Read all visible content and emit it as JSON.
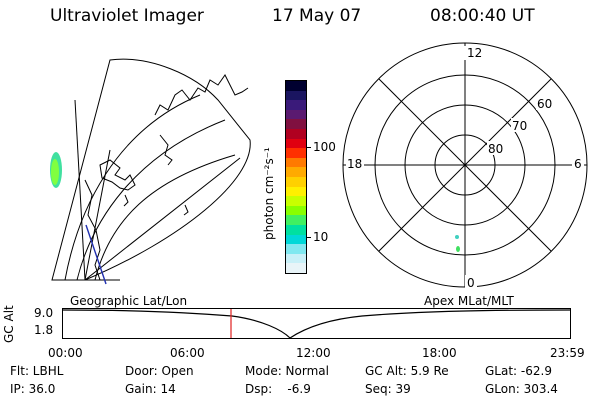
{
  "header": {
    "instrument": "Ultraviolet Imager",
    "date": "17 May 07",
    "time": "08:00:40 UT"
  },
  "colorbar": {
    "label": "photon cm⁻²s⁻¹",
    "ticks": [
      "100",
      "10"
    ],
    "colors": [
      "#000030",
      "#1a1560",
      "#3a1a7a",
      "#5a1a70",
      "#801040",
      "#b00020",
      "#e00010",
      "#ff3000",
      "#ff7a00",
      "#ffaa00",
      "#ffd000",
      "#fff000",
      "#c8ff00",
      "#88ff00",
      "#40f060",
      "#00e0a0",
      "#00d8d8",
      "#80e8f0",
      "#c8f0f8",
      "#e8f4f8"
    ]
  },
  "polar": {
    "labels_mlt": [
      "12",
      "18",
      "6",
      "0"
    ],
    "labels_lat": [
      "60",
      "70",
      "80"
    ]
  },
  "timeline": {
    "left_label": "Geographic Lat/Lon",
    "right_label": "Apex  MLat/MLT",
    "ylabel": "GC Alt",
    "yticks": [
      "9.0",
      "1.8"
    ],
    "xticks": [
      "00:00",
      "06:00",
      "12:00",
      "18:00",
      "23:59"
    ]
  },
  "status": {
    "flt": "Flt: LBHL",
    "ip": "IP: 36.0",
    "door": "Door: Open",
    "gain": "Gain: 14",
    "mode": "Mode: Normal",
    "dsp": "Dsp:    -6.9",
    "gcalt": "GC Alt: 5.9 Re",
    "seq": "Seq: 39",
    "glat": "GLat: -62.9",
    "glon": "GLon: 303.4"
  }
}
